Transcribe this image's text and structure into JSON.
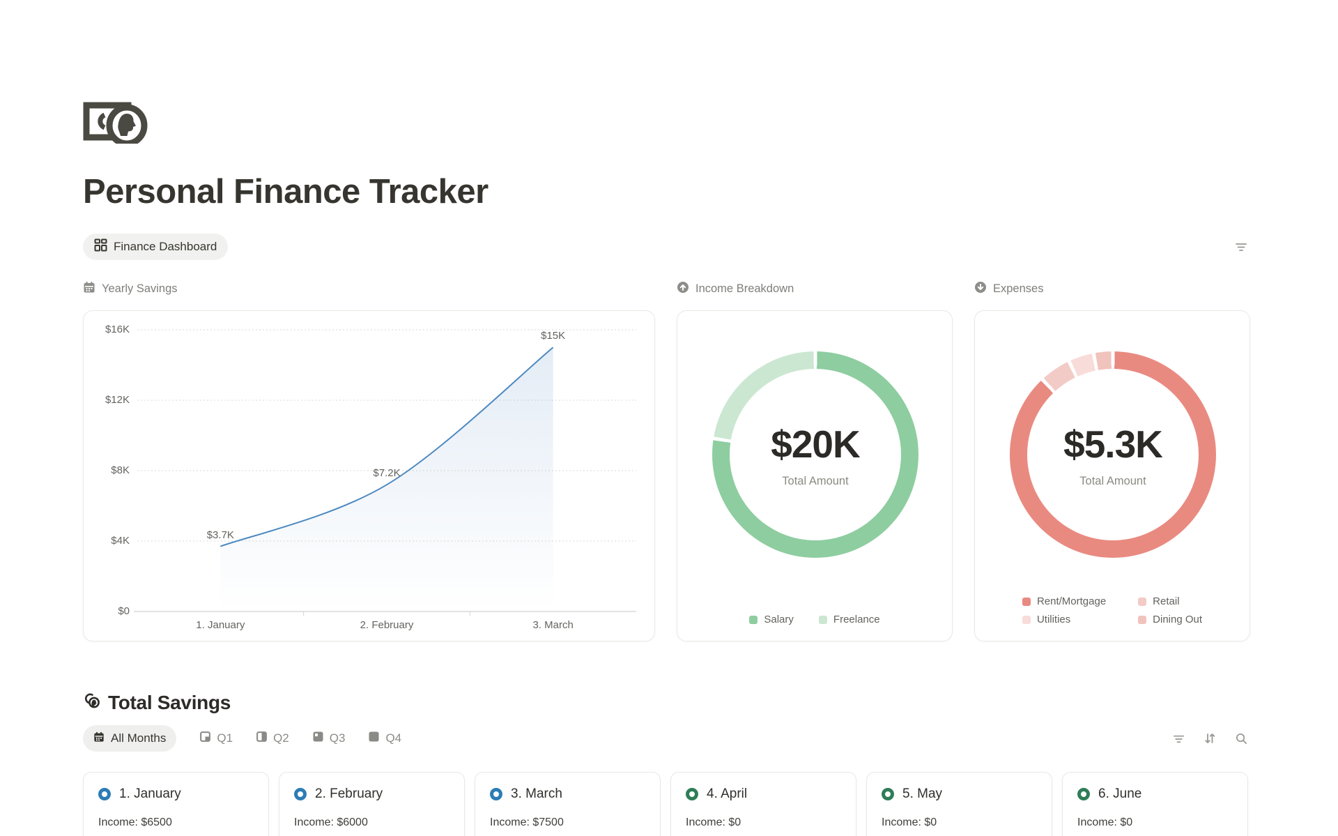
{
  "page_title": "Personal Finance Tracker",
  "toolbar": {
    "view_pill": "Finance Dashboard",
    "dashboard_filter_icon": "filter-icon"
  },
  "chart_data": [
    {
      "type": "area",
      "title": "Yearly Savings",
      "icon": "calendar-icon",
      "categories": [
        "1. January",
        "2. February",
        "3. March"
      ],
      "values": [
        3700,
        7200,
        15000
      ],
      "point_labels": [
        "$3.7K",
        "$7.2K",
        "$15K"
      ],
      "y_ticks": [
        {
          "value": 0,
          "label": "$0"
        },
        {
          "value": 4000,
          "label": "$4K"
        },
        {
          "value": 8000,
          "label": "$8K"
        },
        {
          "value": 12000,
          "label": "$12K"
        },
        {
          "value": 16000,
          "label": "$16K"
        }
      ],
      "ylim": [
        0,
        16000
      ],
      "grid": "horizontal-dotted",
      "legend_position": "none",
      "line_color": "#4d89c0",
      "area_color": "#6090c7"
    },
    {
      "type": "pie",
      "title": "Income Breakdown",
      "icon": "circle-arrow-up-icon",
      "center_value": "$20K",
      "center_label": "Total Amount",
      "segments": [
        {
          "label": "Salary",
          "pct": 77.5,
          "color": "#8ecda0"
        },
        {
          "label": "Freelance",
          "pct": 22.5,
          "color": "#cbe7d1"
        }
      ],
      "legend_position": "bottom"
    },
    {
      "type": "pie",
      "title": "Expenses",
      "icon": "circle-arrow-down-icon",
      "center_value": "$5.3K",
      "center_label": "Total Amount",
      "segments": [
        {
          "label": "Rent/Mortgage",
          "pct": 88,
          "color": "#e98a80"
        },
        {
          "label": "Retail",
          "pct": 5,
          "color": "#f3cbc6"
        },
        {
          "label": "Utilities",
          "pct": 4,
          "color": "#f8dcd9"
        },
        {
          "label": "Dining Out",
          "pct": 3,
          "color": "#f1c3bd"
        }
      ],
      "legend_position": "bottom"
    }
  ],
  "total_savings": {
    "heading": "Total Savings",
    "tabs": [
      {
        "label": "All Months",
        "icon": "calendar-icon",
        "active": true
      },
      {
        "label": "Q1",
        "icon": "quarter-1-icon",
        "active": false
      },
      {
        "label": "Q2",
        "icon": "quarter-2-icon",
        "active": false
      },
      {
        "label": "Q3",
        "icon": "quarter-3-icon",
        "active": false
      },
      {
        "label": "Q4",
        "icon": "quarter-4-icon",
        "active": false
      }
    ],
    "tools": [
      "filter-icon",
      "sort-icon",
      "search-icon"
    ],
    "months": [
      {
        "title": "1. January",
        "income": "Income: $6500",
        "accent": "#2d7cb5"
      },
      {
        "title": "2. February",
        "income": "Income: $6000",
        "accent": "#2d7cb5"
      },
      {
        "title": "3. March",
        "income": "Income: $7500",
        "accent": "#2d7cb5"
      },
      {
        "title": "4. April",
        "income": "Income: $0",
        "accent": "#2e7d57"
      },
      {
        "title": "5. May",
        "income": "Income: $0",
        "accent": "#2e7d57"
      },
      {
        "title": "6. June",
        "income": "Income: $0",
        "accent": "#2e7d57"
      }
    ]
  }
}
